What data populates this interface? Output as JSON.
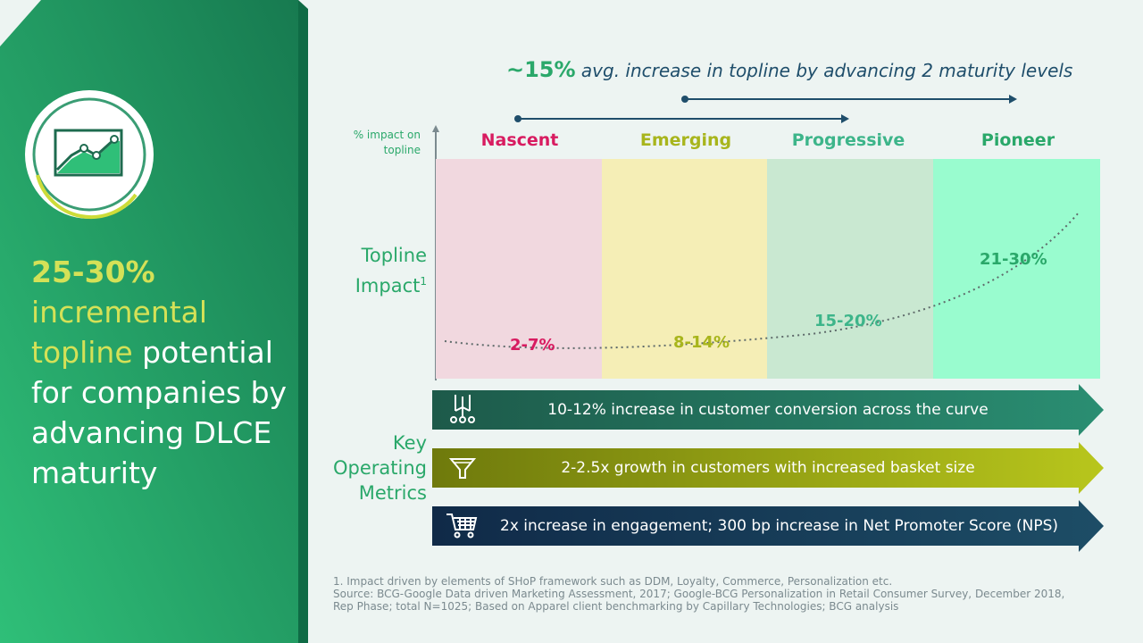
{
  "left_panel": {
    "headline_pct": "25-30%",
    "headline_yellow": "incremental topline",
    "headline_white": "potential for companies by advancing DLCE maturity",
    "icon": "line-chart-icon",
    "colors": {
      "green_dark": "#1a8a58",
      "green_light": "#2fbf78",
      "accent_yellow": "#d4e157"
    }
  },
  "headline": {
    "big": "~15%",
    "rest": "avg. increase in topline by advancing 2 maturity levels"
  },
  "chart": {
    "y_axis_label": "% impact on topline",
    "row_label": "Topline Impact",
    "row_label_sup": "1",
    "stages": [
      {
        "name": "Nascent",
        "range": "2-7%",
        "color": "#d81b60",
        "band": "#f1d8df"
      },
      {
        "name": "Emerging",
        "range": "8-14%",
        "color": "#a8b51c",
        "band": "#f5eeb6"
      },
      {
        "name": "Progressive",
        "range": "15-20%",
        "color": "#3db58a",
        "band": "#c9e8d1"
      },
      {
        "name": "Pioneer",
        "range": "21-30%",
        "color": "#2aa86a",
        "band": "#99fccf"
      }
    ]
  },
  "metrics": {
    "label": "Key Operating Metrics",
    "items": [
      {
        "text": "10-12% increase in customer conversion across the curve",
        "icon": "network-nodes-icon"
      },
      {
        "text": "2-2.5x growth in customers with increased basket size",
        "icon": "funnel-icon"
      },
      {
        "text": "2x increase in engagement; 300 bp increase in Net Promoter Score (NPS)",
        "icon": "shopping-cart-icon"
      }
    ]
  },
  "footnotes": [
    "1. Impact driven by elements of SHoP framework such as DDM, Loyalty, Commerce, Personalization etc.",
    "Source: BCG-Google Data driven Marketing Assessment, 2017; Google-BCG Personalization in Retail Consumer Survey, December 2018,",
    "Rep Phase; total N=1025; Based on Apparel client benchmarking by Capillary Technologies; BCG analysis"
  ]
}
